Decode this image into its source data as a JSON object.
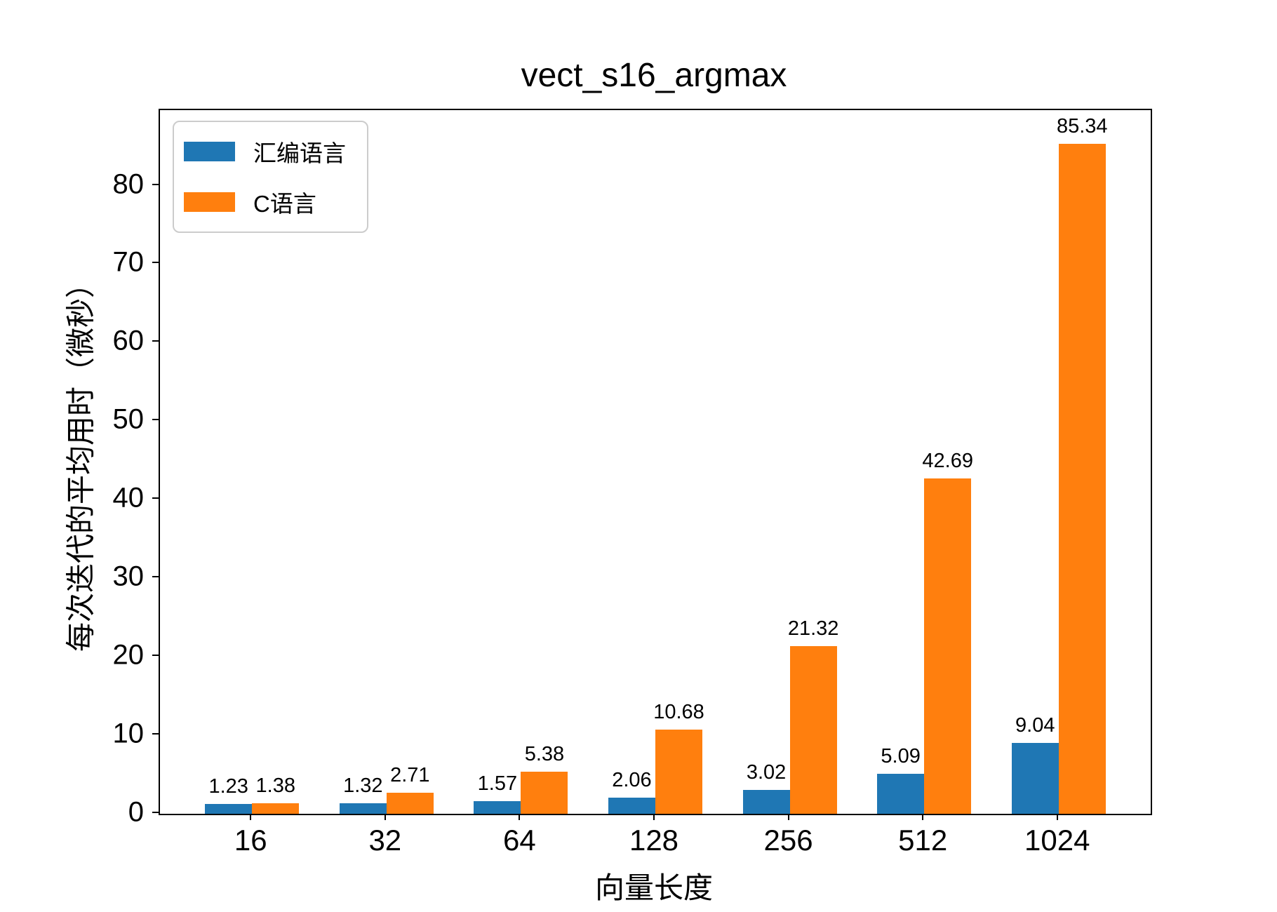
{
  "title": "vect_s16_argmax",
  "axes": {
    "x_label": "向量长度",
    "y_label": "每次迭代的平均用时（微秒）"
  },
  "legend": {
    "entries": [
      {
        "label": "汇编语言",
        "color": "#1f77b4"
      },
      {
        "label": "C语言",
        "color": "#ff7f0e"
      }
    ]
  },
  "colors": {
    "assembly_blue": "#1f77b4",
    "c_orange": "#ff7f0e",
    "axis": "#000000",
    "legend_border": "#cccccc",
    "background": "#ffffff"
  },
  "chart_data": {
    "type": "bar",
    "title": "vect_s16_argmax",
    "xlabel": "向量长度",
    "ylabel": "每次迭代的平均用时（微秒）",
    "categories": [
      "16",
      "32",
      "64",
      "128",
      "256",
      "512",
      "1024"
    ],
    "series": [
      {
        "name": "汇编语言",
        "color": "#1f77b4",
        "values": [
          1.23,
          1.32,
          1.57,
          2.06,
          3.02,
          5.09,
          9.04
        ]
      },
      {
        "name": "C语言",
        "color": "#ff7f0e",
        "values": [
          1.38,
          2.71,
          5.38,
          10.68,
          21.32,
          42.69,
          85.34
        ]
      }
    ],
    "value_labels": [
      "1.23",
      "1.38",
      "1.32",
      "2.71",
      "1.57",
      "5.38",
      "2.06",
      "10.68",
      "3.02",
      "21.32",
      "5.09",
      "42.69",
      "9.04",
      "85.34"
    ],
    "ylim": [
      0,
      89.607
    ],
    "yticks": [
      0,
      10,
      20,
      30,
      40,
      50,
      60,
      70,
      80
    ],
    "grid": false,
    "legend_position": "upper left",
    "bar_width_units": 0.35
  }
}
